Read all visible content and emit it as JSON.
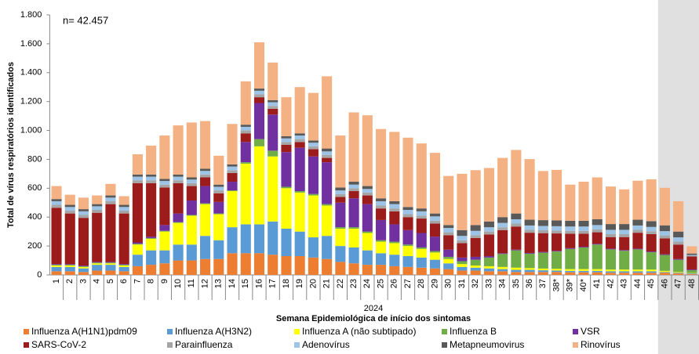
{
  "chart_data": {
    "type": "stacked_bar",
    "y_axis_label": "Total de vírus respiratórios identificados",
    "annotation": "n= 42.457",
    "x_axis_year": "2024",
    "x_axis_label": "Semana Epidemiológica de início dos sintomas",
    "categories": [
      "1",
      "2",
      "3",
      "4",
      "5",
      "6",
      "7",
      "8",
      "9",
      "10",
      "11",
      "12",
      "13",
      "14",
      "15",
      "16",
      "17",
      "18",
      "19",
      "20",
      "21",
      "22",
      "23",
      "24",
      "25",
      "26",
      "27",
      "28",
      "29",
      "30",
      "31",
      "32",
      "33",
      "34",
      "35",
      "36",
      "37",
      "38*",
      "39*",
      "40*",
      "41",
      "42",
      "43",
      "44",
      "45",
      "46",
      "47",
      "48"
    ],
    "ylim": [
      0,
      1800
    ],
    "yticks": [
      0,
      200,
      400,
      600,
      800,
      {
        "value": 1000,
        "label": "1.000"
      },
      {
        "value": 1200,
        "label": "1.200"
      },
      {
        "value": 1400,
        "label": "1.400"
      },
      {
        "value": 1600,
        "label": "1.600"
      },
      {
        "value": 1800,
        "label": "1.800"
      }
    ],
    "series": [
      {
        "name": "Influenza A(H1N1)pdm09",
        "color": "#ed7d31",
        "values": [
          25,
          25,
          20,
          30,
          30,
          25,
          60,
          70,
          80,
          100,
          100,
          110,
          110,
          150,
          150,
          150,
          140,
          130,
          130,
          120,
          110,
          90,
          80,
          70,
          70,
          60,
          55,
          50,
          45,
          40,
          30,
          30,
          25,
          25,
          20,
          20,
          20,
          20,
          18,
          18,
          18,
          15,
          15,
          15,
          15,
          15,
          10,
          5
        ]
      },
      {
        "name": "Influenza A(H3N2)",
        "color": "#5b9bd5",
        "values": [
          30,
          30,
          25,
          40,
          40,
          30,
          80,
          100,
          90,
          110,
          110,
          160,
          130,
          180,
          200,
          200,
          230,
          190,
          170,
          140,
          160,
          110,
          110,
          100,
          80,
          80,
          75,
          70,
          60,
          40,
          25,
          20,
          20,
          15,
          15,
          15,
          12,
          10,
          10,
          10,
          10,
          10,
          10,
          10,
          10,
          5,
          5,
          5
        ]
      },
      {
        "name": "Influenza A (não subtipado)",
        "color": "#ffff00",
        "values": [
          10,
          10,
          10,
          10,
          10,
          10,
          70,
          80,
          130,
          150,
          200,
          220,
          180,
          250,
          420,
          540,
          450,
          280,
          270,
          290,
          210,
          120,
          130,
          120,
          80,
          80,
          70,
          60,
          50,
          30,
          20,
          15,
          15,
          15,
          15,
          12,
          12,
          12,
          12,
          12,
          12,
          12,
          12,
          12,
          12,
          8,
          5,
          3
        ]
      },
      {
        "name": "Influenza B",
        "color": "#70ad47",
        "values": [
          5,
          5,
          5,
          5,
          5,
          5,
          5,
          5,
          5,
          5,
          5,
          5,
          5,
          5,
          10,
          50,
          40,
          10,
          10,
          10,
          10,
          10,
          10,
          10,
          10,
          10,
          10,
          10,
          10,
          15,
          20,
          40,
          60,
          90,
          120,
          100,
          110,
          120,
          140,
          150,
          170,
          140,
          130,
          140,
          120,
          110,
          85,
          20
        ]
      },
      {
        "name": "VSR",
        "color": "#7030a0",
        "values": [
          5,
          5,
          5,
          5,
          5,
          5,
          10,
          10,
          40,
          60,
          100,
          120,
          80,
          60,
          140,
          250,
          250,
          240,
          300,
          260,
          290,
          170,
          200,
          190,
          140,
          120,
          100,
          100,
          100,
          50,
          25,
          20,
          10,
          5,
          5,
          5,
          5,
          5,
          5,
          5,
          5,
          5,
          5,
          5,
          5,
          5,
          5,
          5
        ]
      },
      {
        "name": "SARS-CoV-2",
        "color": "#9c1c1c",
        "values": [
          390,
          350,
          330,
          340,
          400,
          350,
          410,
          370,
          260,
          210,
          100,
          60,
          60,
          60,
          60,
          40,
          40,
          50,
          40,
          50,
          30,
          40,
          50,
          60,
          80,
          90,
          90,
          100,
          90,
          100,
          100,
          130,
          150,
          160,
          160,
          140,
          130,
          120,
          100,
          90,
          80,
          80,
          90,
          110,
          120,
          110,
          100,
          90
        ]
      },
      {
        "name": "Parainfluenza",
        "color": "#a5a5a5",
        "values": [
          20,
          20,
          20,
          20,
          20,
          20,
          20,
          20,
          20,
          20,
          20,
          20,
          20,
          20,
          20,
          20,
          20,
          20,
          20,
          20,
          20,
          20,
          20,
          20,
          20,
          20,
          20,
          20,
          20,
          20,
          20,
          20,
          20,
          20,
          20,
          20,
          20,
          20,
          20,
          20,
          20,
          20,
          20,
          20,
          20,
          20,
          20,
          5
        ]
      },
      {
        "name": "Adenovírus",
        "color": "#9dc3e6",
        "values": [
          25,
          25,
          25,
          25,
          25,
          25,
          25,
          25,
          25,
          25,
          25,
          25,
          25,
          25,
          25,
          25,
          25,
          25,
          25,
          25,
          25,
          25,
          25,
          25,
          30,
          30,
          30,
          30,
          30,
          30,
          30,
          30,
          30,
          30,
          30,
          30,
          30,
          30,
          30,
          30,
          30,
          30,
          30,
          30,
          30,
          30,
          30,
          5
        ]
      },
      {
        "name": "Metapneumovirus",
        "color": "#595959",
        "values": [
          15,
          15,
          15,
          15,
          15,
          15,
          15,
          15,
          15,
          15,
          15,
          15,
          15,
          15,
          15,
          15,
          15,
          15,
          15,
          15,
          20,
          20,
          20,
          20,
          20,
          20,
          20,
          20,
          20,
          20,
          40,
          40,
          40,
          40,
          40,
          40,
          40,
          40,
          40,
          40,
          40,
          40,
          40,
          40,
          40,
          40,
          40,
          10
        ]
      },
      {
        "name": "Rinovírus",
        "color": "#f4b183",
        "values": [
          90,
          70,
          80,
          60,
          80,
          60,
          140,
          200,
          300,
          340,
          380,
          330,
          200,
          280,
          300,
          320,
          260,
          270,
          320,
          330,
          500,
          360,
          480,
          490,
          480,
          480,
          480,
          450,
          420,
          340,
          390,
          380,
          370,
          410,
          440,
          420,
          340,
          350,
          250,
          270,
          290,
          260,
          240,
          270,
          290,
          260,
          210,
          50
        ]
      }
    ]
  }
}
